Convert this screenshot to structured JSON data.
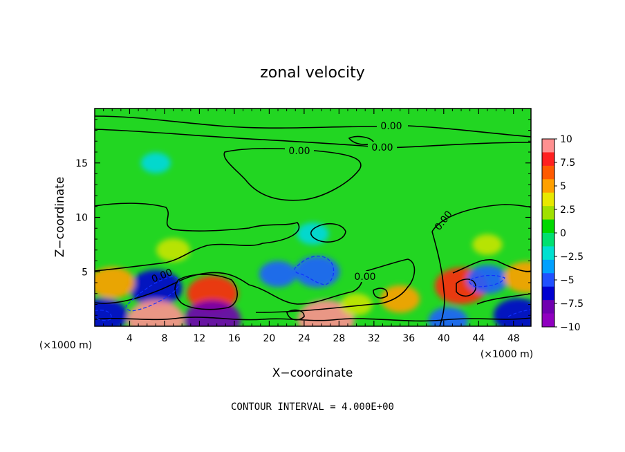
{
  "chart_data": {
    "type": "heatmap",
    "title": "zonal velocity",
    "xlabel": "X−coordinate",
    "ylabel": "Z−coordinate",
    "x_unit_left": "(×1000 m)",
    "x_unit_right": "(×1000 m)",
    "xlim": [
      0,
      50
    ],
    "ylim": [
      0,
      20
    ],
    "x_ticks": [
      4,
      8,
      12,
      16,
      20,
      24,
      28,
      32,
      36,
      40,
      44,
      48
    ],
    "x_tick_labels": [
      "4",
      "8",
      "12",
      "16",
      "20",
      "24",
      "28",
      "32",
      "36",
      "40",
      "44",
      "48"
    ],
    "y_ticks": [
      5,
      10,
      15
    ],
    "y_tick_labels": [
      "5",
      "10",
      "15"
    ],
    "colorbar": {
      "range": [
        -10,
        10
      ],
      "tick_labels": [
        "10",
        "7.5",
        "5",
        "2.5",
        "0",
        "−2.5",
        "−5",
        "−7.5",
        "−10"
      ],
      "tick_values": [
        10,
        7.5,
        5,
        2.5,
        0,
        -2.5,
        -5,
        -7.5,
        -10
      ],
      "colors": [
        "#ff9090",
        "#ff2020",
        "#ff5a00",
        "#ffa000",
        "#e8e800",
        "#a0e000",
        "#00d800",
        "#00e070",
        "#00e0d0",
        "#00a0ff",
        "#2050ff",
        "#0000d0",
        "#7000b0",
        "#9000c0"
      ]
    },
    "contour_labels": [
      "0.00",
      "0.00",
      "0.00",
      "0.00",
      "0.00",
      "0.00"
    ],
    "contour_interval_text": "CONTOUR INTERVAL = 4.000E+00",
    "features": [
      {
        "x": 13.5,
        "z": 3.0,
        "value": 7.5
      },
      {
        "x": 7.0,
        "z": 3.5,
        "value": -8.0
      },
      {
        "x": 2.0,
        "z": 4.0,
        "value": 6.0
      },
      {
        "x": 1.0,
        "z": 1.0,
        "value": -7.0
      },
      {
        "x": 7.0,
        "z": 0.6,
        "value": 9.0
      },
      {
        "x": 13.5,
        "z": 0.6,
        "value": -9.0
      },
      {
        "x": 26.5,
        "z": 0.6,
        "value": 9.0
      },
      {
        "x": 25.5,
        "z": 5.0,
        "value": -6.0
      },
      {
        "x": 21.0,
        "z": 4.8,
        "value": -4.0
      },
      {
        "x": 35.0,
        "z": 2.5,
        "value": 4.5
      },
      {
        "x": 42.0,
        "z": 3.7,
        "value": 8.0
      },
      {
        "x": 45.0,
        "z": 4.3,
        "value": -5.0
      },
      {
        "x": 48.5,
        "z": 1.0,
        "value": -7.0
      },
      {
        "x": 49.5,
        "z": 4.5,
        "value": 6.0
      },
      {
        "x": 40.5,
        "z": 0.5,
        "value": -4.5
      },
      {
        "x": 9.0,
        "z": 7.0,
        "value": 3.0
      },
      {
        "x": 30.0,
        "z": 2.0,
        "value": 2.5
      },
      {
        "x": 7.0,
        "z": 15.0,
        "value": -2.0
      },
      {
        "x": 25.0,
        "z": 8.5,
        "value": -2.5
      },
      {
        "x": 45.0,
        "z": 7.5,
        "value": 2.0
      }
    ]
  }
}
